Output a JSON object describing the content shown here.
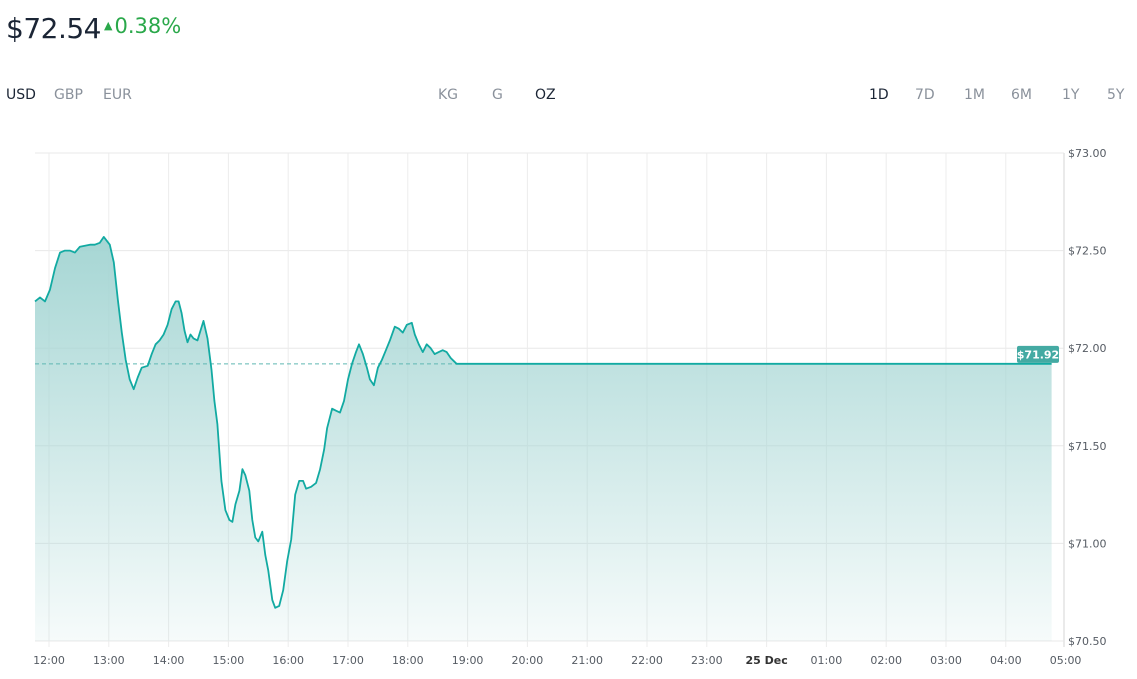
{
  "header": {
    "price": "$72.54",
    "change": "0.38%",
    "change_direction": "up",
    "change_color": "#2aa84a"
  },
  "currencies": {
    "options": [
      "USD",
      "GBP",
      "EUR"
    ],
    "selected": "USD"
  },
  "units": {
    "options": [
      "KG",
      "G",
      "OZ"
    ],
    "selected": "OZ"
  },
  "ranges": {
    "options": [
      "1D",
      "7D",
      "1M",
      "6M",
      "1Y",
      "5Y"
    ],
    "selected": "1D"
  },
  "chart_data": {
    "type": "area",
    "line_color": "#12aaa2",
    "fill_color": "#a6d6d4",
    "reference_line": {
      "value": 71.92,
      "style": "dashed"
    },
    "last_value_label": "$71.92",
    "ylim": [
      70.5,
      73.0
    ],
    "y_ticks": [
      "$73.00",
      "$72.50",
      "$72.00",
      "$71.50",
      "$71.00",
      "$70.50"
    ],
    "y_tick_values": [
      73.0,
      72.5,
      72.0,
      71.5,
      71.0,
      70.5
    ],
    "x_ticks": [
      "12:00",
      "13:00",
      "14:00",
      "15:00",
      "16:00",
      "17:00",
      "18:00",
      "19:00",
      "20:00",
      "21:00",
      "22:00",
      "23:00",
      "25 Dec",
      "01:00",
      "02:00",
      "03:00",
      "04:00",
      "05:00"
    ],
    "x_range": [
      "11:46",
      "05:00"
    ],
    "grid": true,
    "points": [
      [
        "11:46",
        72.24
      ],
      [
        "11:51",
        72.26
      ],
      [
        "11:56",
        72.24
      ],
      [
        "12:01",
        72.3
      ],
      [
        "12:06",
        72.41
      ],
      [
        "12:11",
        72.49
      ],
      [
        "12:16",
        72.5
      ],
      [
        "12:21",
        72.5
      ],
      [
        "12:26",
        72.49
      ],
      [
        "12:31",
        72.52
      ],
      [
        "12:41",
        72.53
      ],
      [
        "12:46",
        72.53
      ],
      [
        "12:51",
        72.54
      ],
      [
        "12:55",
        72.57
      ],
      [
        "13:01",
        72.53
      ],
      [
        "13:05",
        72.44
      ],
      [
        "13:09",
        72.25
      ],
      [
        "13:13",
        72.08
      ],
      [
        "13:17",
        71.94
      ],
      [
        "13:21",
        71.84
      ],
      [
        "13:25",
        71.79
      ],
      [
        "13:29",
        71.85
      ],
      [
        "13:33",
        71.9
      ],
      [
        "13:39",
        71.91
      ],
      [
        "13:43",
        71.97
      ],
      [
        "13:47",
        72.02
      ],
      [
        "13:51",
        72.04
      ],
      [
        "13:55",
        72.07
      ],
      [
        "13:59",
        72.12
      ],
      [
        "14:03",
        72.2
      ],
      [
        "14:07",
        72.24
      ],
      [
        "14:10",
        72.24
      ],
      [
        "14:13",
        72.18
      ],
      [
        "14:16",
        72.09
      ],
      [
        "14:19",
        72.03
      ],
      [
        "14:22",
        72.07
      ],
      [
        "14:25",
        72.05
      ],
      [
        "14:29",
        72.04
      ],
      [
        "14:32",
        72.09
      ],
      [
        "14:35",
        72.14
      ],
      [
        "14:39",
        72.05
      ],
      [
        "14:43",
        71.89
      ],
      [
        "14:46",
        71.73
      ],
      [
        "14:49",
        71.61
      ],
      [
        "14:53",
        71.32
      ],
      [
        "14:57",
        71.17
      ],
      [
        "15:01",
        71.12
      ],
      [
        "15:04",
        71.11
      ],
      [
        "15:07",
        71.2
      ],
      [
        "15:11",
        71.27
      ],
      [
        "15:14",
        71.38
      ],
      [
        "15:17",
        71.35
      ],
      [
        "15:21",
        71.27
      ],
      [
        "15:24",
        71.12
      ],
      [
        "15:27",
        71.03
      ],
      [
        "15:30",
        71.01
      ],
      [
        "15:34",
        71.06
      ],
      [
        "15:37",
        70.94
      ],
      [
        "15:40",
        70.86
      ],
      [
        "15:44",
        70.71
      ],
      [
        "15:47",
        70.67
      ],
      [
        "15:51",
        70.68
      ],
      [
        "15:55",
        70.76
      ],
      [
        "15:59",
        70.91
      ],
      [
        "16:03",
        71.02
      ],
      [
        "16:07",
        71.25
      ],
      [
        "16:11",
        71.32
      ],
      [
        "16:15",
        71.32
      ],
      [
        "16:18",
        71.28
      ],
      [
        "16:23",
        71.29
      ],
      [
        "16:28",
        71.31
      ],
      [
        "16:32",
        71.38
      ],
      [
        "16:36",
        71.48
      ],
      [
        "16:39",
        71.59
      ],
      [
        "16:44",
        71.69
      ],
      [
        "16:48",
        71.68
      ],
      [
        "16:52",
        71.67
      ],
      [
        "16:56",
        71.73
      ],
      [
        "17:00",
        71.84
      ],
      [
        "17:04",
        71.92
      ],
      [
        "17:08",
        71.98
      ],
      [
        "17:11",
        72.02
      ],
      [
        "17:15",
        71.97
      ],
      [
        "17:19",
        71.9
      ],
      [
        "17:22",
        71.84
      ],
      [
        "17:26",
        71.81
      ],
      [
        "17:30",
        71.9
      ],
      [
        "17:34",
        71.94
      ],
      [
        "17:38",
        71.99
      ],
      [
        "17:42",
        72.04
      ],
      [
        "17:47",
        72.11
      ],
      [
        "17:51",
        72.1
      ],
      [
        "17:55",
        72.08
      ],
      [
        "17:59",
        72.12
      ],
      [
        "18:04",
        72.13
      ],
      [
        "18:07",
        72.07
      ],
      [
        "18:11",
        72.02
      ],
      [
        "18:15",
        71.98
      ],
      [
        "18:19",
        72.02
      ],
      [
        "18:23",
        72.0
      ],
      [
        "18:27",
        71.97
      ],
      [
        "18:31",
        71.98
      ],
      [
        "18:35",
        71.99
      ],
      [
        "18:39",
        71.98
      ],
      [
        "18:43",
        71.95
      ],
      [
        "18:49",
        71.92
      ],
      [
        "04:46",
        71.92
      ]
    ]
  }
}
